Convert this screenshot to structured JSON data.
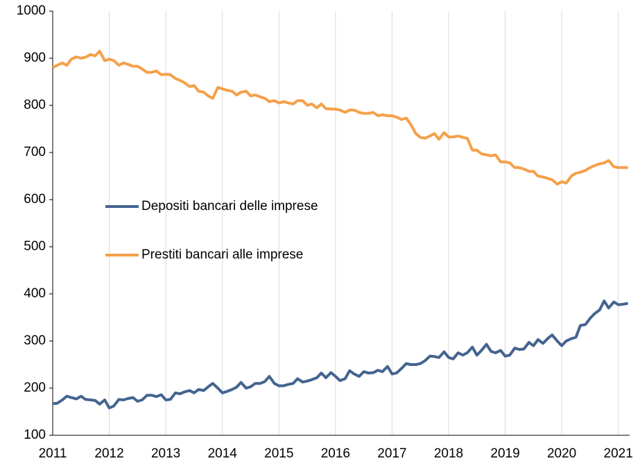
{
  "chart_data": {
    "type": "line",
    "x": [
      2011,
      2011.08,
      2011.17,
      2011.25,
      2011.33,
      2011.42,
      2011.5,
      2011.58,
      2011.67,
      2011.75,
      2011.83,
      2011.92,
      2012,
      2012.08,
      2012.17,
      2012.25,
      2012.33,
      2012.42,
      2012.5,
      2012.58,
      2012.67,
      2012.75,
      2012.83,
      2012.92,
      2013,
      2013.08,
      2013.17,
      2013.25,
      2013.33,
      2013.42,
      2013.5,
      2013.58,
      2013.67,
      2013.75,
      2013.83,
      2013.92,
      2014,
      2014.08,
      2014.17,
      2014.25,
      2014.33,
      2014.42,
      2014.5,
      2014.58,
      2014.67,
      2014.75,
      2014.83,
      2014.92,
      2015,
      2015.08,
      2015.17,
      2015.25,
      2015.33,
      2015.42,
      2015.5,
      2015.58,
      2015.67,
      2015.75,
      2015.83,
      2015.92,
      2016,
      2016.08,
      2016.17,
      2016.25,
      2016.33,
      2016.42,
      2016.5,
      2016.58,
      2016.67,
      2016.75,
      2016.83,
      2016.92,
      2017,
      2017.08,
      2017.17,
      2017.25,
      2017.33,
      2017.42,
      2017.5,
      2017.58,
      2017.67,
      2017.75,
      2017.83,
      2017.92,
      2018,
      2018.08,
      2018.17,
      2018.25,
      2018.33,
      2018.42,
      2018.5,
      2018.58,
      2018.67,
      2018.75,
      2018.83,
      2018.92,
      2019,
      2019.08,
      2019.17,
      2019.25,
      2019.33,
      2019.42,
      2019.5,
      2019.58,
      2019.67,
      2019.75,
      2019.83,
      2019.92,
      2020,
      2020.08,
      2020.17,
      2020.25,
      2020.33,
      2020.42,
      2020.5,
      2020.58,
      2020.67,
      2020.75,
      2020.83,
      2020.92,
      2021,
      2021.08,
      2021.17
    ],
    "series": [
      {
        "name": "Depositi bancari delle imprese",
        "color": "#44648f",
        "values": [
          167,
          168,
          175,
          183,
          180,
          177,
          183,
          176,
          175,
          174,
          166,
          175,
          158,
          162,
          176,
          175,
          178,
          180,
          172,
          175,
          185,
          185,
          182,
          186,
          175,
          176,
          190,
          188,
          192,
          195,
          190,
          197,
          195,
          203,
          210,
          200,
          190,
          193,
          197,
          202,
          212,
          200,
          203,
          210,
          210,
          214,
          225,
          210,
          205,
          205,
          208,
          210,
          220,
          213,
          215,
          218,
          222,
          232,
          222,
          233,
          225,
          216,
          220,
          237,
          230,
          225,
          235,
          232,
          233,
          238,
          235,
          246,
          230,
          232,
          242,
          252,
          250,
          250,
          252,
          258,
          268,
          267,
          265,
          277,
          265,
          262,
          275,
          270,
          275,
          287,
          270,
          280,
          293,
          278,
          275,
          280,
          268,
          270,
          285,
          282,
          283,
          297,
          290,
          303,
          295,
          305,
          313,
          300,
          290,
          300,
          305,
          308,
          333,
          335,
          348,
          358,
          366,
          385,
          370,
          383,
          377,
          378,
          380
        ]
      },
      {
        "name": "Prestiti bancari alle imprese",
        "color": "#f5a04a",
        "values": [
          880,
          885,
          890,
          885,
          898,
          903,
          900,
          902,
          908,
          905,
          915,
          895,
          898,
          895,
          885,
          890,
          887,
          883,
          883,
          877,
          870,
          870,
          873,
          865,
          866,
          865,
          857,
          853,
          848,
          840,
          842,
          830,
          828,
          820,
          815,
          838,
          835,
          832,
          830,
          822,
          828,
          830,
          820,
          822,
          818,
          815,
          808,
          810,
          805,
          808,
          805,
          803,
          810,
          810,
          800,
          803,
          795,
          803,
          793,
          792,
          792,
          790,
          785,
          790,
          790,
          785,
          783,
          783,
          785,
          778,
          780,
          778,
          778,
          775,
          770,
          773,
          760,
          740,
          732,
          730,
          735,
          740,
          728,
          742,
          733,
          733,
          735,
          732,
          730,
          705,
          705,
          697,
          695,
          693,
          695,
          680,
          680,
          678,
          668,
          668,
          665,
          660,
          660,
          650,
          648,
          645,
          642,
          633,
          638,
          635,
          650,
          656,
          658,
          662,
          668,
          672,
          676,
          678,
          683,
          670,
          668,
          668,
          668
        ]
      }
    ],
    "xlim": [
      2011,
      2021.2
    ],
    "xticks": [
      2011,
      2012,
      2013,
      2014,
      2015,
      2016,
      2017,
      2018,
      2019,
      2020,
      2021
    ],
    "ylim": [
      100,
      1000
    ],
    "yticks": [
      100,
      200,
      300,
      400,
      500,
      600,
      700,
      800,
      900,
      1000
    ],
    "grid": true
  }
}
